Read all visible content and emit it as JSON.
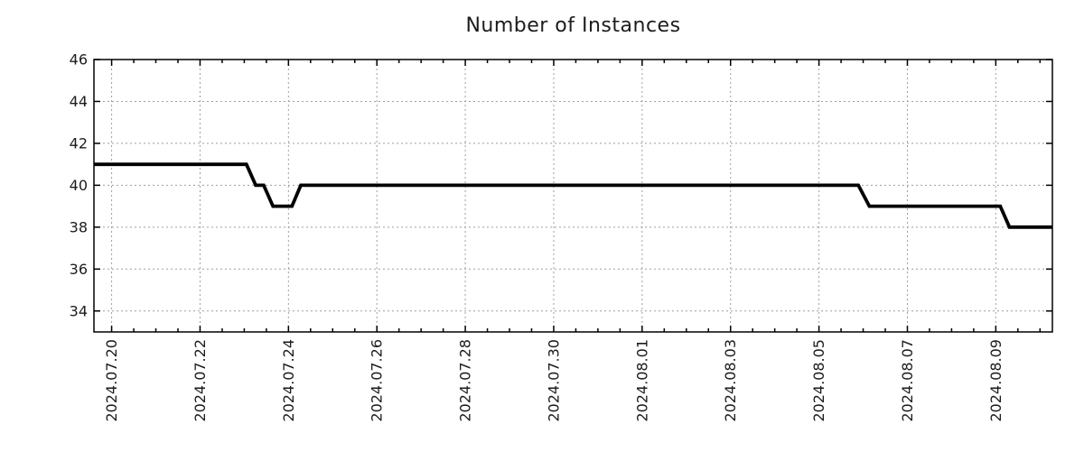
{
  "chart_data": {
    "type": "line",
    "title": "Number of Instances",
    "xlabel": "",
    "ylabel": "",
    "grid": true,
    "legend_position": "none",
    "colors": {
      "line": "#000000",
      "grid": "#9e9e9e",
      "axis": "#000000",
      "text": "#1c1c1c",
      "background": "#ffffff"
    },
    "x_axis": {
      "range_days": [
        -0.4,
        21.28
      ],
      "epoch_label": "2024.07.20",
      "tick_days": [
        0,
        2,
        4,
        6,
        8,
        10,
        12,
        14,
        16,
        18,
        20
      ],
      "tick_labels": [
        "2024.07.20",
        "2024.07.22",
        "2024.07.24",
        "2024.07.26",
        "2024.07.28",
        "2024.07.30",
        "2024.08.01",
        "2024.08.03",
        "2024.08.05",
        "2024.08.07",
        "2024.08.09"
      ],
      "minor_tick_step_days": 0.5,
      "label_rotation_deg": -90
    },
    "y_axis": {
      "range": [
        33,
        46
      ],
      "tick_values": [
        34,
        36,
        38,
        40,
        42,
        44,
        46
      ],
      "tick_labels": [
        "34",
        "36",
        "38",
        "40",
        "42",
        "44",
        "46"
      ]
    },
    "series": [
      {
        "name": "instances",
        "color": "#000000",
        "points_day_value": [
          [
            -0.4,
            41
          ],
          [
            3.05,
            41
          ],
          [
            3.26,
            40
          ],
          [
            3.44,
            40
          ],
          [
            3.65,
            39
          ],
          [
            4.08,
            39
          ],
          [
            4.28,
            40
          ],
          [
            16.89,
            40
          ],
          [
            17.14,
            39
          ],
          [
            20.1,
            39
          ],
          [
            20.31,
            38
          ],
          [
            21.28,
            38
          ]
        ]
      }
    ],
    "periods_read_from_chart": [
      {
        "start": "2024-07-19 (left edge)",
        "end": "2024-07-23 ~01h",
        "instances": 41
      },
      {
        "start": "2024-07-23 ~06h",
        "end": "2024-07-23 ~11h",
        "instances": 40
      },
      {
        "start": "2024-07-23 ~16h",
        "end": "2024-07-24 ~02h",
        "instances": 39
      },
      {
        "start": "2024-07-24 ~07h",
        "end": "2024-08-05 ~21h",
        "instances": 40
      },
      {
        "start": "2024-08-06 ~03h",
        "end": "2024-08-09 ~02h",
        "instances": 39
      },
      {
        "start": "2024-08-09 ~07h",
        "end": "2024-08-10 (right edge)",
        "instances": 38
      }
    ]
  }
}
